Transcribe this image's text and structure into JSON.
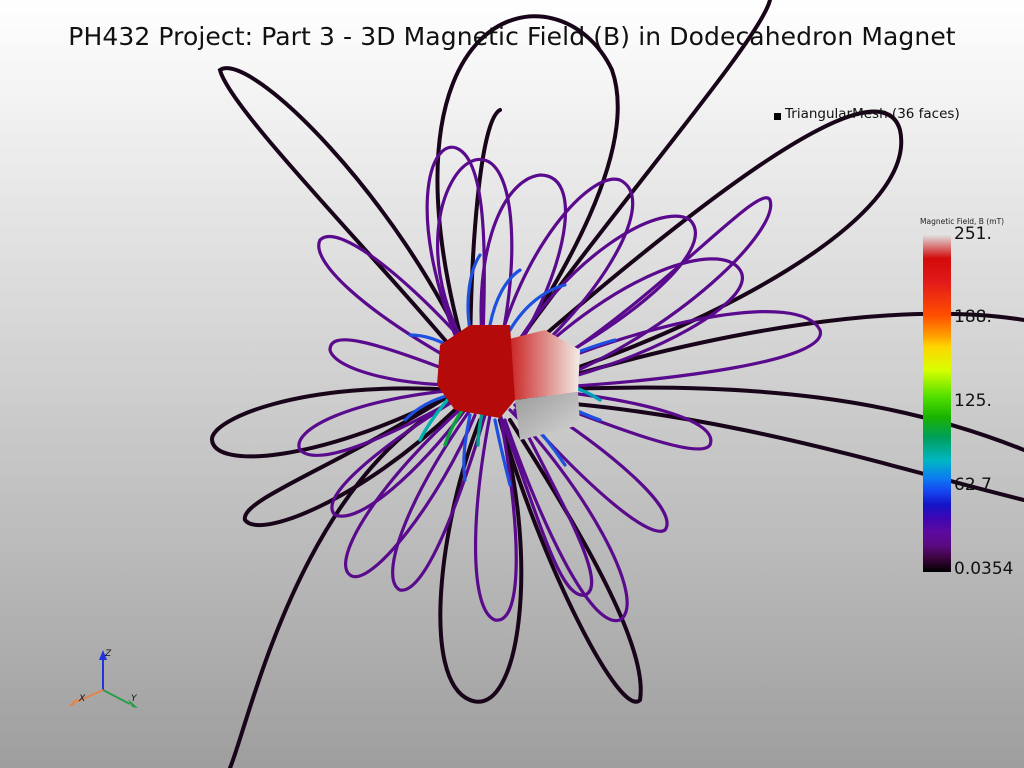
{
  "title": "PH432 Project: Part 3 - 3D Magnetic Field (B) in Dodecahedron Magnet",
  "legend": {
    "icon": "square-icon",
    "label": "TriangularMesh (36 faces)"
  },
  "colorbar": {
    "title": "Magnetic Field, B (mT)",
    "ticks": [
      "251.",
      "188.",
      "125.",
      "62.7",
      "0.0354"
    ],
    "range": [
      0.0354,
      251
    ]
  },
  "axes": {
    "x": "X",
    "y": "Y",
    "z": "Z"
  },
  "colors": {
    "field_line_low": "#5a0a8c",
    "field_line_mid": "#1e50e0",
    "field_line_high": "#c80a0a",
    "magnet_body": "#b40a0a",
    "outer_lines": "#190519"
  }
}
